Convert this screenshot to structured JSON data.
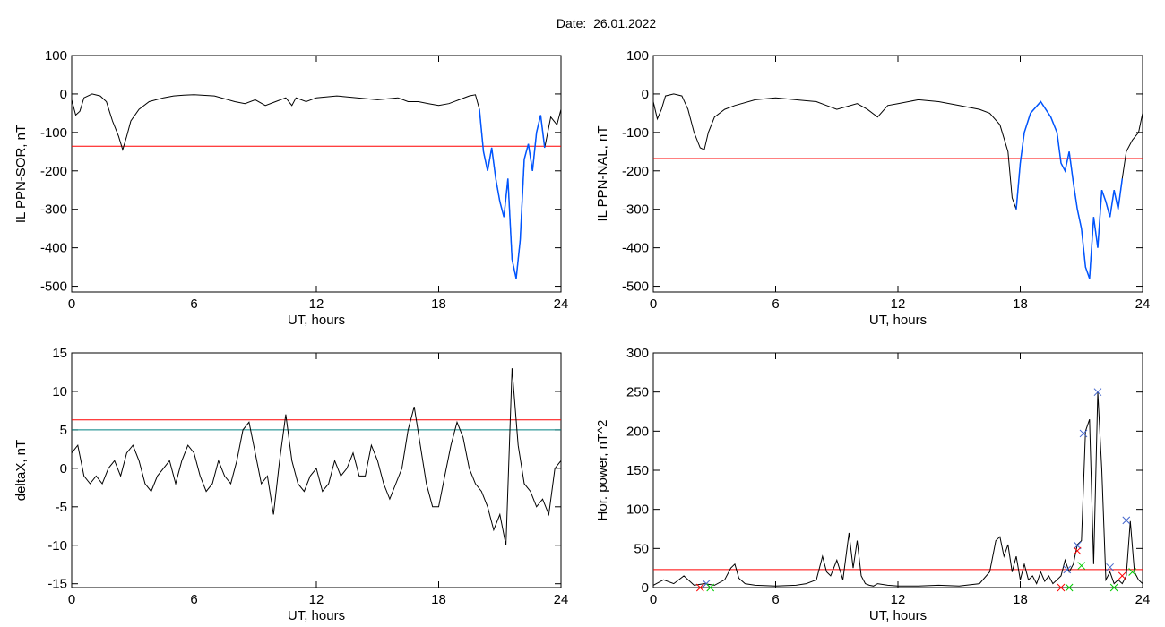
{
  "page": {
    "title": "Date:  26.01.2022"
  },
  "colors": {
    "threshold": "#ff0000",
    "threshold2": "#008080",
    "substorm": "#0055ff",
    "marker_peak": "#4466cc",
    "marker_start": "#ff0000",
    "marker_end": "#00cc00",
    "curve": "#000000"
  },
  "chart_data": [
    {
      "id": "sor",
      "type": "line",
      "title": "",
      "xlabel": "UT, hours",
      "ylabel": "IL PPN-SOR, nT",
      "xlim": [
        0,
        24
      ],
      "ylim": [
        -515,
        100
      ],
      "xticks": [
        0,
        6,
        12,
        18,
        24
      ],
      "yticks": [
        100,
        0,
        -100,
        -200,
        -300,
        -400,
        -500
      ],
      "threshold": -136,
      "highlight_range": [
        20.0,
        23.2
      ],
      "series": [
        {
          "x": [
            0,
            0.2,
            0.4,
            0.6,
            1.0,
            1.4,
            1.7,
            2.0,
            2.3,
            2.5,
            2.7,
            2.9,
            3.3,
            3.8,
            4.5,
            5.0,
            5.5,
            6.0,
            7.0,
            8.0,
            8.5,
            9.0,
            9.5,
            10.0,
            10.5,
            10.8,
            11.0,
            11.5,
            12.0,
            13.0,
            14.0,
            15.0,
            16.0,
            16.5,
            17.0,
            17.5,
            18.0,
            18.5,
            19.0,
            19.5,
            19.8,
            20.0,
            20.2,
            20.4,
            20.6,
            20.8,
            21.0,
            21.2,
            21.4,
            21.6,
            21.8,
            22.0,
            22.2,
            22.4,
            22.6,
            22.8,
            23.0,
            23.2,
            23.5,
            23.8,
            24.0
          ],
          "y": [
            -15,
            -55,
            -45,
            -10,
            0,
            -5,
            -20,
            -70,
            -110,
            -145,
            -110,
            -70,
            -40,
            -20,
            -10,
            -5,
            -3,
            -2,
            -5,
            -20,
            -25,
            -15,
            -30,
            -20,
            -10,
            -30,
            -10,
            -20,
            -10,
            -5,
            -10,
            -15,
            -10,
            -20,
            -20,
            -25,
            -30,
            -25,
            -15,
            -5,
            -2,
            -40,
            -150,
            -200,
            -140,
            -220,
            -280,
            -320,
            -220,
            -430,
            -480,
            -380,
            -170,
            -130,
            -200,
            -100,
            -55,
            -140,
            -60,
            -80,
            -40
          ]
        }
      ]
    },
    {
      "id": "nal",
      "type": "line",
      "title": "",
      "xlabel": "UT, hours",
      "ylabel": "IL PPN-NAL, nT",
      "xlim": [
        0,
        24
      ],
      "ylim": [
        -515,
        100
      ],
      "xticks": [
        0,
        6,
        12,
        18,
        24
      ],
      "yticks": [
        100,
        0,
        -100,
        -200,
        -300,
        -400,
        -500
      ],
      "threshold": -168,
      "highlight_range": [
        17.7,
        23.0
      ],
      "series": [
        {
          "x": [
            0,
            0.2,
            0.4,
            0.6,
            1.0,
            1.4,
            1.7,
            2.0,
            2.3,
            2.5,
            2.7,
            3.0,
            3.5,
            4.0,
            5.0,
            6.0,
            7.0,
            8.0,
            8.5,
            9.0,
            10.0,
            10.5,
            11.0,
            11.5,
            12.0,
            13.0,
            14.0,
            15.0,
            16.0,
            16.5,
            17.0,
            17.4,
            17.6,
            17.8,
            18.0,
            18.2,
            18.5,
            19.0,
            19.5,
            19.8,
            20.0,
            20.2,
            20.4,
            20.6,
            20.8,
            21.0,
            21.2,
            21.4,
            21.6,
            21.8,
            22.0,
            22.2,
            22.4,
            22.6,
            22.8,
            23.0,
            23.2,
            23.5,
            23.8,
            24.0
          ],
          "y": [
            -20,
            -65,
            -40,
            -5,
            0,
            -5,
            -40,
            -100,
            -140,
            -145,
            -100,
            -60,
            -40,
            -30,
            -15,
            -10,
            -15,
            -20,
            -30,
            -40,
            -25,
            -40,
            -60,
            -30,
            -25,
            -15,
            -20,
            -30,
            -40,
            -50,
            -80,
            -150,
            -270,
            -300,
            -180,
            -100,
            -50,
            -20,
            -60,
            -100,
            -180,
            -200,
            -150,
            -230,
            -300,
            -350,
            -450,
            -480,
            -320,
            -400,
            -250,
            -280,
            -320,
            -250,
            -300,
            -220,
            -150,
            -120,
            -100,
            -50
          ]
        }
      ]
    },
    {
      "id": "deltax",
      "type": "line",
      "title": "",
      "xlabel": "UT, hours",
      "ylabel": "deltaX, nT",
      "xlim": [
        0,
        24
      ],
      "ylim": [
        -15.5,
        15
      ],
      "xticks": [
        0,
        6,
        12,
        18,
        24
      ],
      "yticks": [
        15,
        10,
        5,
        0,
        -5,
        -10,
        -15
      ],
      "thresholds": [
        6.3,
        5.0
      ],
      "series": [
        {
          "x": [
            0,
            0.3,
            0.6,
            0.9,
            1.2,
            1.5,
            1.8,
            2.1,
            2.4,
            2.7,
            3.0,
            3.3,
            3.6,
            3.9,
            4.2,
            4.5,
            4.8,
            5.1,
            5.4,
            5.7,
            6.0,
            6.3,
            6.6,
            6.9,
            7.2,
            7.5,
            7.8,
            8.1,
            8.4,
            8.7,
            9.0,
            9.3,
            9.6,
            9.9,
            10.2,
            10.5,
            10.8,
            11.1,
            11.4,
            11.7,
            12.0,
            12.3,
            12.6,
            12.9,
            13.2,
            13.5,
            13.8,
            14.1,
            14.4,
            14.7,
            15.0,
            15.3,
            15.6,
            15.9,
            16.2,
            16.5,
            16.8,
            17.1,
            17.4,
            17.7,
            18.0,
            18.3,
            18.6,
            18.9,
            19.2,
            19.5,
            19.8,
            20.1,
            20.4,
            20.7,
            21.0,
            21.3,
            21.6,
            21.9,
            22.2,
            22.5,
            22.8,
            23.1,
            23.4,
            23.7,
            24.0
          ],
          "y": [
            2,
            3,
            -1,
            -2,
            -1,
            -2,
            0,
            1,
            -1,
            2,
            3,
            1,
            -2,
            -3,
            -1,
            0,
            1,
            -2,
            1,
            3,
            2,
            -1,
            -3,
            -2,
            1,
            -1,
            -2,
            1,
            5,
            6,
            2,
            -2,
            -1,
            -6,
            1,
            7,
            1,
            -2,
            -3,
            -1,
            0,
            -3,
            -2,
            1,
            -1,
            0,
            2,
            -1,
            -1,
            3,
            1,
            -2,
            -4,
            -2,
            0,
            5,
            8,
            3,
            -2,
            -5,
            -5,
            -1,
            3,
            6,
            4,
            0,
            -2,
            -3,
            -5,
            -8,
            -6,
            -10,
            13,
            3,
            -2,
            -3,
            -5,
            -4,
            -6,
            0,
            1
          ]
        }
      ]
    },
    {
      "id": "power",
      "type": "line",
      "title": "",
      "xlabel": "UT, hours",
      "ylabel": "Hor. power, nT^2",
      "xlim": [
        0,
        24
      ],
      "ylim": [
        0,
        300
      ],
      "xticks": [
        0,
        6,
        12,
        18,
        24
      ],
      "yticks": [
        300,
        250,
        200,
        150,
        100,
        50,
        0
      ],
      "threshold": 23,
      "series": [
        {
          "x": [
            0,
            0.5,
            1.0,
            1.5,
            2.0,
            2.5,
            3.0,
            3.5,
            3.8,
            4.0,
            4.2,
            4.5,
            5.0,
            6.0,
            7.0,
            7.5,
            8.0,
            8.3,
            8.5,
            8.7,
            9.0,
            9.3,
            9.6,
            9.8,
            10.0,
            10.2,
            10.4,
            10.6,
            10.8,
            11.0,
            11.5,
            12.0,
            13.0,
            14.0,
            15.0,
            16.0,
            16.5,
            16.8,
            17.0,
            17.2,
            17.4,
            17.6,
            17.8,
            18.0,
            18.2,
            18.4,
            18.6,
            18.8,
            19.0,
            19.2,
            19.4,
            19.6,
            19.8,
            20.0,
            20.2,
            20.4,
            20.6,
            20.8,
            21.0,
            21.2,
            21.4,
            21.6,
            21.8,
            22.0,
            22.2,
            22.4,
            22.6,
            22.8,
            23.0,
            23.2,
            23.4,
            23.6,
            23.8,
            24.0
          ],
          "y": [
            3,
            10,
            5,
            15,
            3,
            5,
            3,
            10,
            25,
            30,
            12,
            5,
            3,
            2,
            3,
            5,
            10,
            40,
            20,
            15,
            35,
            10,
            70,
            25,
            60,
            15,
            5,
            3,
            2,
            5,
            3,
            2,
            2,
            3,
            2,
            5,
            20,
            60,
            65,
            40,
            55,
            20,
            40,
            10,
            30,
            10,
            15,
            5,
            20,
            8,
            15,
            5,
            10,
            15,
            35,
            20,
            30,
            55,
            60,
            200,
            215,
            30,
            250,
            150,
            10,
            20,
            5,
            10,
            5,
            15,
            85,
            20,
            10,
            5
          ]
        }
      ],
      "markers_peak": [
        [
          2.6,
          5
        ],
        [
          20.3,
          23
        ],
        [
          20.8,
          54
        ],
        [
          21.1,
          197
        ],
        [
          21.8,
          250
        ],
        [
          22.4,
          26
        ],
        [
          23.2,
          86
        ]
      ],
      "markers_start": [
        [
          2.3,
          0
        ],
        [
          20.0,
          0
        ],
        [
          20.8,
          47
        ],
        [
          23.0,
          15
        ]
      ],
      "markers_end": [
        [
          2.8,
          0
        ],
        [
          20.4,
          0
        ],
        [
          21.0,
          28
        ],
        [
          22.6,
          0
        ],
        [
          23.5,
          20
        ]
      ]
    }
  ]
}
